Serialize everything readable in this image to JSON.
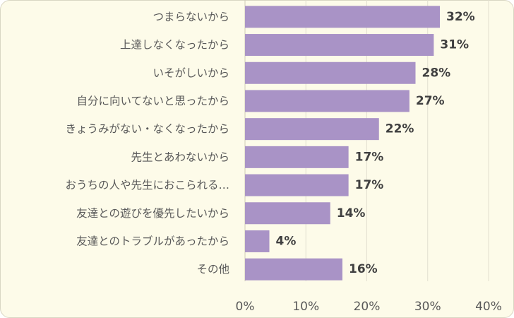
{
  "chart_data": {
    "type": "bar",
    "orientation": "horizontal",
    "categories": [
      "つまらないから",
      "上達しなくなったから",
      "いそがしいから",
      "自分に向いてないと思ったから",
      "きょうみがない・なくなったから",
      "先生とあわないから",
      "おうちの人や先生におこられる…",
      "友達との遊びを優先したいから",
      "友達とのトラブルがあったから",
      "その他"
    ],
    "values": [
      32,
      31,
      28,
      27,
      22,
      17,
      17,
      14,
      4,
      16
    ],
    "value_labels": [
      "32%",
      "31%",
      "28%",
      "27%",
      "22%",
      "17%",
      "17%",
      "14%",
      "4%",
      "16%"
    ],
    "xlim": [
      0,
      40
    ],
    "x_ticks": [
      0,
      10,
      20,
      30,
      40
    ],
    "x_tick_labels": [
      "0%",
      "10%",
      "20%",
      "30%",
      "40%"
    ],
    "grid": true,
    "colors": {
      "bar": "#a993c6",
      "background": "#fdfbe9"
    }
  }
}
